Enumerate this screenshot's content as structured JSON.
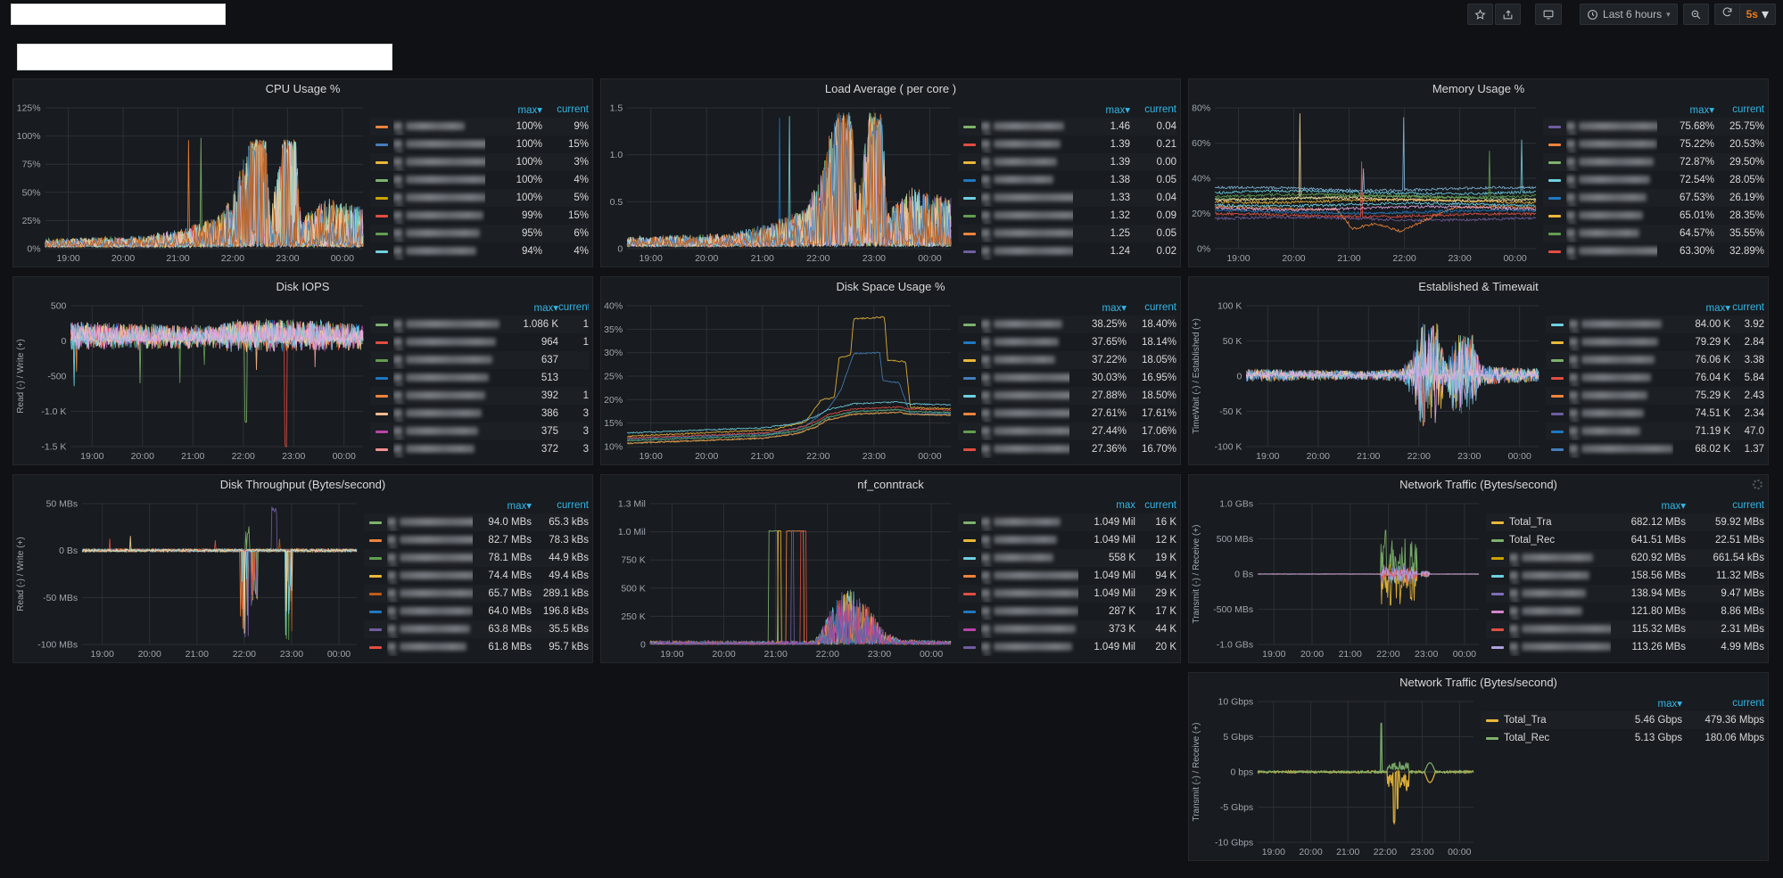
{
  "navbar": {
    "icons": [
      "star",
      "share",
      "tv-monitor",
      "clock",
      "zoom-out",
      "refresh",
      "caret-down"
    ],
    "time_range": "Last 6 hours",
    "refresh_interval": "5s",
    "accent_color": "#eb7b18",
    "legend_header_color": "#33b5e5"
  },
  "time_ticks": [
    "19:00",
    "20:00",
    "21:00",
    "22:00",
    "23:00",
    "00:00"
  ],
  "panels": [
    {
      "title": "CPU Usage %",
      "y_label": "",
      "y_ticks": [
        "125%",
        "100%",
        "75%",
        "50%",
        "25%",
        "0%"
      ],
      "legend": {
        "max_label": "max",
        "current_label": "current",
        "sort_caret": true,
        "rows": [
          {
            "color": "#EF843C",
            "name": null,
            "max": "100%",
            "current": "9%"
          },
          {
            "color": "#447EBC",
            "name": null,
            "max": "100%",
            "current": "15%"
          },
          {
            "color": "#EAB839",
            "name": null,
            "max": "100%",
            "current": "3%"
          },
          {
            "color": "#7EB26D",
            "name": null,
            "max": "100%",
            "current": "4%"
          },
          {
            "color": "#CCA300",
            "name": null,
            "max": "100%",
            "current": "5%"
          },
          {
            "color": "#E24D42",
            "name": null,
            "max": "99%",
            "current": "15%"
          },
          {
            "color": "#629E51",
            "name": null,
            "max": "95%",
            "current": "6%"
          },
          {
            "color": "#6ED0E0",
            "name": null,
            "max": "94%",
            "current": "4%"
          }
        ]
      }
    },
    {
      "title": "Load Average ( per core )",
      "y_label": "",
      "y_ticks": [
        "1.5",
        "1.0",
        "0.5",
        "0"
      ],
      "legend": {
        "max_label": "max",
        "current_label": "current",
        "sort_caret": true,
        "rows": [
          {
            "color": "#7EB26D",
            "name": null,
            "max": "1.46",
            "current": "0.04"
          },
          {
            "color": "#E24D42",
            "name": null,
            "max": "1.39",
            "current": "0.21"
          },
          {
            "color": "#EAB839",
            "name": null,
            "max": "1.39",
            "current": "0.00"
          },
          {
            "color": "#1F78C1",
            "name": null,
            "max": "1.38",
            "current": "0.05"
          },
          {
            "color": "#6ED0E0",
            "name": null,
            "max": "1.33",
            "current": "0.04"
          },
          {
            "color": "#629E51",
            "name": null,
            "max": "1.32",
            "current": "0.09"
          },
          {
            "color": "#EF843C",
            "name": null,
            "max": "1.25",
            "current": "0.05"
          },
          {
            "color": "#705DA0",
            "name": null,
            "max": "1.24",
            "current": "0.02"
          }
        ]
      }
    },
    {
      "title": "Memory Usage %",
      "y_label": "",
      "y_ticks": [
        "80%",
        "60%",
        "40%",
        "20%",
        "0%"
      ],
      "legend": {
        "max_label": "max",
        "current_label": "current",
        "sort_caret": true,
        "rows": [
          {
            "color": "#705DA0",
            "name": null,
            "max": "75.68%",
            "current": "25.75%"
          },
          {
            "color": "#EF843C",
            "name": null,
            "max": "75.22%",
            "current": "20.53%"
          },
          {
            "color": "#7EB26D",
            "name": null,
            "max": "72.87%",
            "current": "29.50%"
          },
          {
            "color": "#6ED0E0",
            "name": null,
            "max": "72.54%",
            "current": "28.05%"
          },
          {
            "color": "#1F78C1",
            "name": null,
            "max": "67.53%",
            "current": "26.19%"
          },
          {
            "color": "#EAB839",
            "name": null,
            "max": "65.01%",
            "current": "28.35%"
          },
          {
            "color": "#629E51",
            "name": null,
            "max": "64.57%",
            "current": "35.55%"
          },
          {
            "color": "#E24D42",
            "name": null,
            "max": "63.30%",
            "current": "32.89%"
          }
        ]
      }
    },
    {
      "title": "Disk IOPS",
      "y_label": "Read (-) / Write (+)",
      "y_ticks": [
        "500",
        "0",
        "-500",
        "-1.0 K",
        "-1.5 K"
      ],
      "legend": {
        "max_label": "max",
        "current_label": "current",
        "sort_caret": true,
        "rows": [
          {
            "color": "#7EB26D",
            "name": null,
            "max": "1.086 K",
            "current": "1"
          },
          {
            "color": "#E24D42",
            "name": null,
            "max": "964",
            "current": "1"
          },
          {
            "color": "#629E51",
            "name": null,
            "max": "637",
            "current": ""
          },
          {
            "color": "#1F78C1",
            "name": null,
            "max": "513",
            "current": ""
          },
          {
            "color": "#EF843C",
            "name": null,
            "max": "392",
            "current": "1"
          },
          {
            "color": "#F9BA8F",
            "name": null,
            "max": "386",
            "current": "3"
          },
          {
            "color": "#BA43A9",
            "name": null,
            "max": "375",
            "current": "3"
          },
          {
            "color": "#F29191",
            "name": null,
            "max": "372",
            "current": "3"
          }
        ]
      }
    },
    {
      "title": "Disk Space Usage %",
      "y_label": "",
      "y_ticks": [
        "40%",
        "35%",
        "30%",
        "25%",
        "20%",
        "15%",
        "10%"
      ],
      "legend": {
        "max_label": "max",
        "current_label": "current",
        "sort_caret": true,
        "rows": [
          {
            "color": "#7EB26D",
            "name": null,
            "max": "38.25%",
            "current": "18.40%"
          },
          {
            "color": "#1F78C1",
            "name": null,
            "max": "37.65%",
            "current": "18.14%"
          },
          {
            "color": "#EAB839",
            "name": null,
            "max": "37.22%",
            "current": "18.05%"
          },
          {
            "color": "#447EBC",
            "name": null,
            "max": "30.03%",
            "current": "16.95%"
          },
          {
            "color": "#6ED0E0",
            "name": null,
            "max": "27.88%",
            "current": "18.50%"
          },
          {
            "color": "#EF843C",
            "name": null,
            "max": "27.61%",
            "current": "17.61%"
          },
          {
            "color": "#629E51",
            "name": null,
            "max": "27.44%",
            "current": "17.06%"
          },
          {
            "color": "#E24D42",
            "name": null,
            "max": "27.36%",
            "current": "16.70%"
          }
        ]
      }
    },
    {
      "title": "Established & Timewait",
      "y_label": "TimeWait (-) / Established (+)",
      "y_ticks": [
        "100 K",
        "50 K",
        "0",
        "-50 K",
        "-100 K"
      ],
      "legend": {
        "max_label": "max",
        "current_label": "current",
        "sort_caret": true,
        "rows": [
          {
            "color": "#6ED0E0",
            "name": null,
            "max": "84.00 K",
            "current": "3.92"
          },
          {
            "color": "#EAB839",
            "name": null,
            "max": "79.29 K",
            "current": "2.84"
          },
          {
            "color": "#7EB26D",
            "name": null,
            "max": "76.06 K",
            "current": "3.38"
          },
          {
            "color": "#E24D42",
            "name": null,
            "max": "76.04 K",
            "current": "5.84"
          },
          {
            "color": "#EF843C",
            "name": null,
            "max": "75.29 K",
            "current": "2.43"
          },
          {
            "color": "#705DA0",
            "name": null,
            "max": "74.51 K",
            "current": "2.34"
          },
          {
            "color": "#1F78C1",
            "name": null,
            "max": "71.19 K",
            "current": "47.0"
          },
          {
            "color": "#447EBC",
            "name": null,
            "max": "68.02 K",
            "current": "1.37"
          }
        ]
      }
    },
    {
      "title": "Disk Throughput (Bytes/second)",
      "y_label": "Read (-) / Write (+)",
      "y_ticks": [
        "50 MBs",
        "0 Bs",
        "-50 MBs",
        "-100 MBs"
      ],
      "legend": {
        "max_label": "max",
        "current_label": "current",
        "sort_caret": true,
        "rows": [
          {
            "color": "#7EB26D",
            "name": null,
            "max": "94.0 MBs",
            "current": "65.3 kBs"
          },
          {
            "color": "#EF843C",
            "name": null,
            "max": "82.7 MBs",
            "current": "78.3 kBs"
          },
          {
            "color": "#629E51",
            "name": null,
            "max": "78.1 MBs",
            "current": "44.9 kBs"
          },
          {
            "color": "#EAB839",
            "name": null,
            "max": "74.4 MBs",
            "current": "49.4 kBs"
          },
          {
            "color": "#C15C17",
            "name": null,
            "max": "65.7 MBs",
            "current": "289.1 kBs"
          },
          {
            "color": "#1F78C1",
            "name": null,
            "max": "64.0 MBs",
            "current": "196.8 kBs"
          },
          {
            "color": "#705DA0",
            "name": null,
            "max": "63.8 MBs",
            "current": "35.5 kBs"
          },
          {
            "color": "#E24D42",
            "name": null,
            "max": "61.8 MBs",
            "current": "95.7 kBs"
          }
        ]
      }
    },
    {
      "title": "nf_conntrack",
      "y_label": "",
      "y_ticks": [
        "1.3 Mil",
        "1.0 Mil",
        "750 K",
        "500 K",
        "250 K",
        "0"
      ],
      "legend": {
        "max_label": "max",
        "current_label": "current",
        "sort_caret": false,
        "rows": [
          {
            "color": "#7EB26D",
            "name": null,
            "max": "1.049 Mil",
            "current": "16 K"
          },
          {
            "color": "#EAB839",
            "name": null,
            "max": "1.049 Mil",
            "current": "12 K"
          },
          {
            "color": "#6ED0E0",
            "name": null,
            "max": "558 K",
            "current": "19 K"
          },
          {
            "color": "#EF843C",
            "name": null,
            "max": "1.049 Mil",
            "current": "94 K"
          },
          {
            "color": "#E24D42",
            "name": null,
            "max": "1.049 Mil",
            "current": "29 K"
          },
          {
            "color": "#1F78C1",
            "name": null,
            "max": "287 K",
            "current": "17 K"
          },
          {
            "color": "#BA43A9",
            "name": null,
            "max": "373 K",
            "current": "44 K"
          },
          {
            "color": "#705DA0",
            "name": null,
            "max": "1.049 Mil",
            "current": "20 K"
          }
        ]
      }
    },
    {
      "title": "Network Traffic (Bytes/second)",
      "y_label": "Transmit (-) / Receive (+)",
      "y_ticks": [
        "1.0 GBs",
        "500 MBs",
        "0 Bs",
        "-500 MBs",
        "-1.0 GBs"
      ],
      "loading": true,
      "legend": {
        "max_label": "max",
        "current_label": "current",
        "sort_caret": true,
        "rows": [
          {
            "color": "#EAB839",
            "name": "Total_Tra",
            "max": "682.12 MBs",
            "current": "59.92 MBs"
          },
          {
            "color": "#7EB26D",
            "name": "Total_Rec",
            "max": "641.51 MBs",
            "current": "22.51 MBs"
          },
          {
            "color": "#CCA300",
            "name": null,
            "max": "620.92 MBs",
            "current": "661.54 kBs"
          },
          {
            "color": "#6ED0E0",
            "name": null,
            "max": "158.56 MBs",
            "current": "11.32 MBs"
          },
          {
            "color": "#806EB7",
            "name": null,
            "max": "138.94 MBs",
            "current": "9.47 MBs"
          },
          {
            "color": "#D683CE",
            "name": null,
            "max": "121.80 MBs",
            "current": "8.86 MBs"
          },
          {
            "color": "#E24D42",
            "name": null,
            "max": "115.32 MBs",
            "current": "2.31 MBs"
          },
          {
            "color": "#AEA2E0",
            "name": null,
            "max": "113.26 MBs",
            "current": "4.99 MBs"
          }
        ]
      }
    },
    {
      "title": "Network Traffic (Bytes/second)",
      "y_label": "Transmit (-) / Receive (+)",
      "y_ticks": [
        "10 Gbps",
        "5 Gbps",
        "0 bps",
        "-5 Gbps",
        "-10 Gbps"
      ],
      "legend": {
        "max_label": "max",
        "current_label": "current",
        "sort_caret": true,
        "rows": [
          {
            "color": "#EAB839",
            "name": "Total_Tra",
            "max": "5.46 Gbps",
            "current": "479.36 Mbps"
          },
          {
            "color": "#7EB26D",
            "name": "Total_Rec",
            "max": "5.13 Gbps",
            "current": "180.06 Mbps"
          }
        ]
      }
    }
  ]
}
